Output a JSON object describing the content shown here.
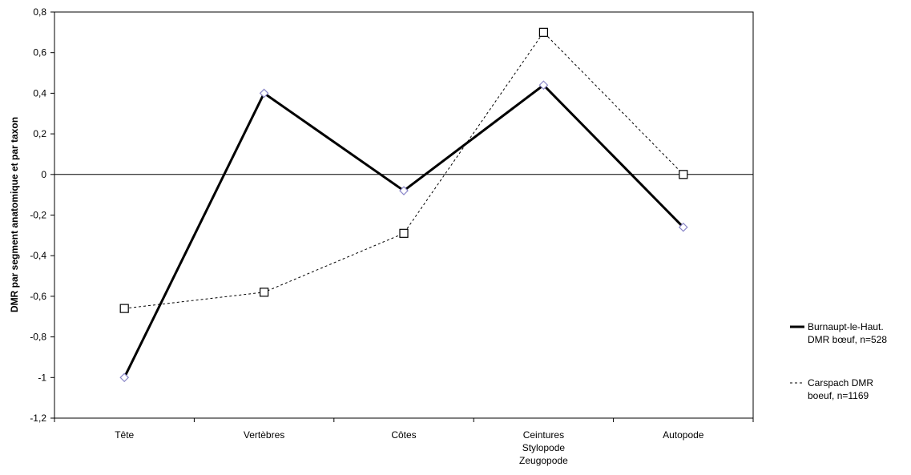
{
  "chart_data": {
    "type": "line",
    "title": "",
    "xlabel": "",
    "ylabel": "DMR par segment anatomique et par taxon",
    "ylim": [
      -1.2,
      0.8
    ],
    "ytick_step": 0.2,
    "ytick_labels": [
      "-1,2",
      "-1",
      "-0,8",
      "-0,6",
      "-0,4",
      "-0,2",
      "0",
      "0,2",
      "0,4",
      "0,6",
      "0,8"
    ],
    "grid": false,
    "legend_position": "right",
    "categories": [
      [
        "Tête"
      ],
      [
        "Vertèbres"
      ],
      [
        "Côtes"
      ],
      [
        "Ceintures",
        "Stylopode",
        "Zeugopode"
      ],
      [
        "Autopode"
      ]
    ],
    "series": [
      {
        "name": [
          "Burnaupt-le-Haut.",
          "DMR bœuf, n=528"
        ],
        "values": [
          -1.0,
          0.4,
          -0.08,
          0.44,
          -0.26
        ],
        "line_style": "solid",
        "marker": "diamond",
        "color": "#000000",
        "marker_color": "#8a86c8"
      },
      {
        "name": [
          "Carspach DMR",
          "boeuf, n=1169"
        ],
        "values": [
          -0.66,
          -0.58,
          -0.29,
          0.7,
          0.0
        ],
        "line_style": "dashed",
        "marker": "square",
        "color": "#000000",
        "marker_color": "#000000"
      }
    ]
  }
}
